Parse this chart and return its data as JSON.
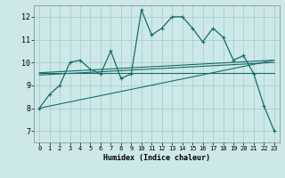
{
  "title": "",
  "xlabel": "Humidex (Indice chaleur)",
  "bg_color": "#cce8e8",
  "line_color": "#1a6b6b",
  "grid_color": "#aad0d0",
  "xlim": [
    -0.5,
    23.5
  ],
  "ylim": [
    6.5,
    12.5
  ],
  "xticks": [
    0,
    1,
    2,
    3,
    4,
    5,
    6,
    7,
    8,
    9,
    10,
    11,
    12,
    13,
    14,
    15,
    16,
    17,
    18,
    19,
    20,
    21,
    22,
    23
  ],
  "yticks": [
    7,
    8,
    9,
    10,
    11,
    12
  ],
  "main_x": [
    0,
    1,
    2,
    3,
    4,
    5,
    6,
    7,
    8,
    9,
    10,
    11,
    12,
    13,
    14,
    15,
    16,
    17,
    18,
    19,
    20,
    21,
    22,
    23
  ],
  "main_y": [
    8.0,
    8.6,
    9.0,
    10.0,
    10.1,
    9.7,
    9.5,
    10.5,
    9.3,
    9.5,
    12.3,
    11.2,
    11.5,
    12.0,
    12.0,
    11.5,
    10.9,
    11.5,
    11.1,
    10.1,
    10.3,
    9.5,
    8.1,
    7.0
  ],
  "reg_lines": [
    [
      9.55,
      9.55
    ],
    [
      8.0,
      10.1
    ],
    [
      9.45,
      10.0
    ],
    [
      9.55,
      10.1
    ]
  ]
}
